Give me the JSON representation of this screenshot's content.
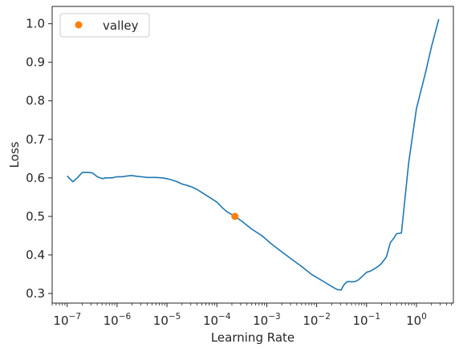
{
  "chart_data": {
    "type": "line",
    "xscale": "log",
    "xlabel": "Learning Rate",
    "ylabel": "Loss",
    "xlim": [
      5e-08,
      5.5
    ],
    "ylim": [
      0.275,
      1.045
    ],
    "x_ticks": [
      {
        "value": 1e-07,
        "base": "10",
        "exp": "−7"
      },
      {
        "value": 1e-06,
        "base": "10",
        "exp": "−6"
      },
      {
        "value": 1e-05,
        "base": "10",
        "exp": "−5"
      },
      {
        "value": 0.0001,
        "base": "10",
        "exp": "−4"
      },
      {
        "value": 0.001,
        "base": "10",
        "exp": "−3"
      },
      {
        "value": 0.01,
        "base": "10",
        "exp": "−2"
      },
      {
        "value": 0.1,
        "base": "10",
        "exp": "−1"
      },
      {
        "value": 1,
        "base": "10",
        "exp": "0"
      }
    ],
    "y_ticks": [
      {
        "value": 0.3,
        "label": "0.3"
      },
      {
        "value": 0.4,
        "label": "0.4"
      },
      {
        "value": 0.5,
        "label": "0.5"
      },
      {
        "value": 0.6,
        "label": "0.6"
      },
      {
        "value": 0.7,
        "label": "0.7"
      },
      {
        "value": 0.8,
        "label": "0.8"
      },
      {
        "value": 0.9,
        "label": "0.9"
      },
      {
        "value": 1.0,
        "label": "1.0"
      }
    ],
    "grid": false,
    "legend_position": "top-left",
    "series": [
      {
        "color": "#1f77b4",
        "x": [
          1e-07,
          1.3e-07,
          1.6e-07,
          2e-07,
          2.6e-07,
          3.2e-07,
          4e-07,
          5e-07,
          6e-07,
          8e-07,
          1e-06,
          1.3e-06,
          1.6e-06,
          2e-06,
          2.5e-06,
          3e-06,
          4e-06,
          5e-06,
          6e-06,
          8e-06,
          1e-05,
          1.3e-05,
          1.6e-05,
          2e-05,
          2.6e-05,
          3.2e-05,
          4e-05,
          5e-05,
          7e-05,
          0.0001,
          0.00013,
          0.00016,
          0.00023,
          0.00032,
          0.0005,
          0.0008,
          0.0012,
          0.002,
          0.003,
          0.005,
          0.008,
          0.013,
          0.02,
          0.026,
          0.031,
          0.035,
          0.04,
          0.045,
          0.05,
          0.06,
          0.07,
          0.08,
          0.1,
          0.12,
          0.14,
          0.17,
          0.2,
          0.25,
          0.3,
          0.35,
          0.4,
          0.5,
          0.7,
          1.0,
          1.5,
          2.0,
          2.8
        ],
        "y": [
          0.605,
          0.59,
          0.6,
          0.614,
          0.614,
          0.613,
          0.603,
          0.598,
          0.6,
          0.6,
          0.603,
          0.603,
          0.605,
          0.606,
          0.604,
          0.603,
          0.601,
          0.601,
          0.601,
          0.6,
          0.598,
          0.594,
          0.59,
          0.584,
          0.58,
          0.576,
          0.57,
          0.562,
          0.55,
          0.537,
          0.522,
          0.512,
          0.5,
          0.487,
          0.467,
          0.45,
          0.43,
          0.408,
          0.391,
          0.37,
          0.349,
          0.333,
          0.318,
          0.31,
          0.309,
          0.322,
          0.33,
          0.331,
          0.33,
          0.331,
          0.336,
          0.343,
          0.355,
          0.358,
          0.363,
          0.37,
          0.378,
          0.395,
          0.432,
          0.443,
          0.455,
          0.457,
          0.64,
          0.78,
          0.87,
          0.94,
          1.012
        ]
      }
    ],
    "markers": [
      {
        "label": "valley",
        "x": 0.00023,
        "y": 0.5,
        "color": "#ff7f0e"
      }
    ]
  }
}
